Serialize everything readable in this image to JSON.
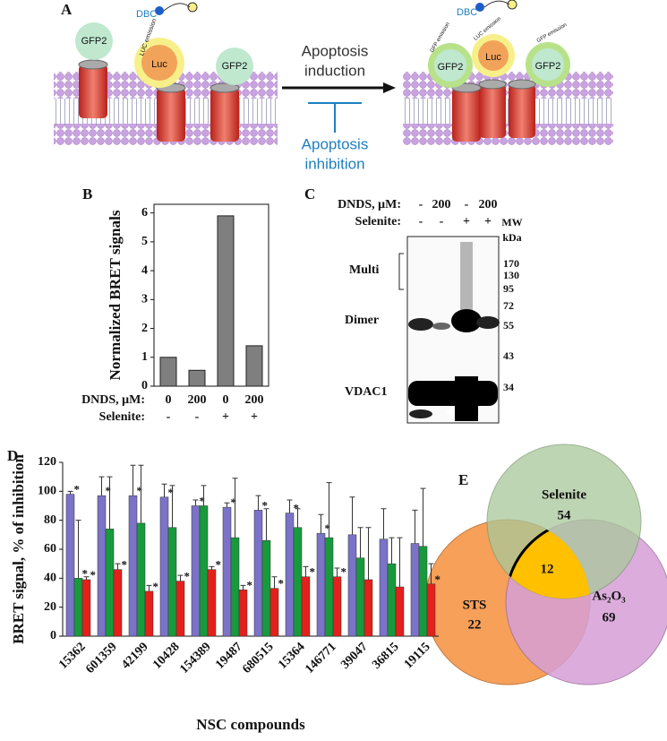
{
  "panel_a": {
    "letter": "A",
    "left": {
      "dbc": "DBC",
      "gfp_left": "GFP2",
      "luc": "Luc",
      "luc_emission": "LUC emission",
      "gfp_right": "GFP2"
    },
    "arrow_top": [
      "Apoptosis",
      "induction"
    ],
    "arrow_bottom": [
      "Apoptosis",
      "inhibition"
    ],
    "right": {
      "dbc": "DBC",
      "gfp_emission_left": "GFP emission",
      "luc_emission": "LUC emission",
      "gfp_emission_right": "GFP emission",
      "gfp_left": "GFP2",
      "luc": "Luc",
      "gfp_right": "GFP2"
    }
  },
  "chart_data": [
    {
      "type": "bar",
      "panel": "B",
      "ylabel": "Normalized BRET signals",
      "values": [
        1,
        0.55,
        5.9,
        1.4
      ],
      "color": "#7f7f7f",
      "ylim": [
        0,
        6.3
      ],
      "yticks": [
        0,
        1,
        2,
        3,
        4,
        5,
        6
      ],
      "condition_rows": [
        {
          "label": "DNDS, μM:",
          "cells": [
            "0",
            "200",
            "0",
            "200"
          ]
        },
        {
          "label": "Selenite:",
          "cells": [
            "-",
            "-",
            "+",
            "+"
          ]
        }
      ]
    },
    {
      "type": "grouped-bar",
      "panel": "D",
      "ylabel": "BRET signal, % of inhibition",
      "xlabel": "NSC compounds",
      "categories": [
        "15362",
        "601359",
        "42199",
        "10428",
        "154389",
        "19487",
        "680515",
        "15364",
        "146771",
        "39047",
        "36815",
        "19115"
      ],
      "series": [
        {
          "color": "#7b73c8",
          "values": [
            98,
            97,
            97,
            96,
            90,
            89,
            87,
            85,
            71,
            70,
            67,
            64
          ],
          "errors": [
            2,
            13,
            21,
            9,
            4,
            3,
            10,
            9,
            13,
            26,
            21,
            23
          ],
          "stars": [
            "*",
            "*",
            "*",
            "*",
            "*",
            "*",
            "*",
            "*",
            "*",
            null,
            null,
            null
          ]
        },
        {
          "color": "#179a3c",
          "values": [
            40,
            74,
            78,
            75,
            90,
            68,
            66,
            75,
            68,
            54,
            50,
            62
          ],
          "errors": [
            40,
            36,
            40,
            29,
            14,
            41,
            22,
            13,
            38,
            21,
            18,
            40
          ],
          "stars": [
            "*",
            null,
            null,
            null,
            null,
            null,
            null,
            null,
            null,
            null,
            null,
            null
          ]
        },
        {
          "color": "#e4201b",
          "values": [
            39,
            46,
            31,
            38,
            46,
            32,
            33,
            41,
            41,
            39,
            34,
            36
          ],
          "errors": [
            2,
            4,
            4,
            4,
            2,
            3,
            8,
            7,
            6,
            36,
            34,
            14
          ],
          "stars": [
            "*",
            "*",
            "*",
            "*",
            "*",
            "*",
            "*",
            "*",
            "*",
            null,
            null,
            "*"
          ]
        }
      ],
      "ylim": [
        0,
        120
      ],
      "yticks": [
        0,
        20,
        40,
        60,
        80,
        100,
        120
      ]
    }
  ],
  "panel_c": {
    "letter": "C",
    "rows": [
      {
        "label": "DNDS, μM:",
        "cells": [
          "-",
          "200",
          "-",
          "200"
        ]
      },
      {
        "label": "Selenite:",
        "cells": [
          "-",
          "-",
          "+",
          "+"
        ]
      }
    ],
    "mw": "MW",
    "kda": "kDa",
    "markers": [
      "170",
      "130",
      "95",
      "72",
      "55",
      "43",
      "34"
    ],
    "bands": [
      "Multi",
      "Dimer",
      "VDAC1"
    ],
    "asterisk": "*"
  },
  "panel_e": {
    "letter": "E",
    "sets": [
      {
        "name": "Selenite",
        "count": "54"
      },
      {
        "name": "STS",
        "count": "22"
      },
      {
        "name": "As₂O₃",
        "count": "69"
      }
    ],
    "intersection": "12"
  }
}
